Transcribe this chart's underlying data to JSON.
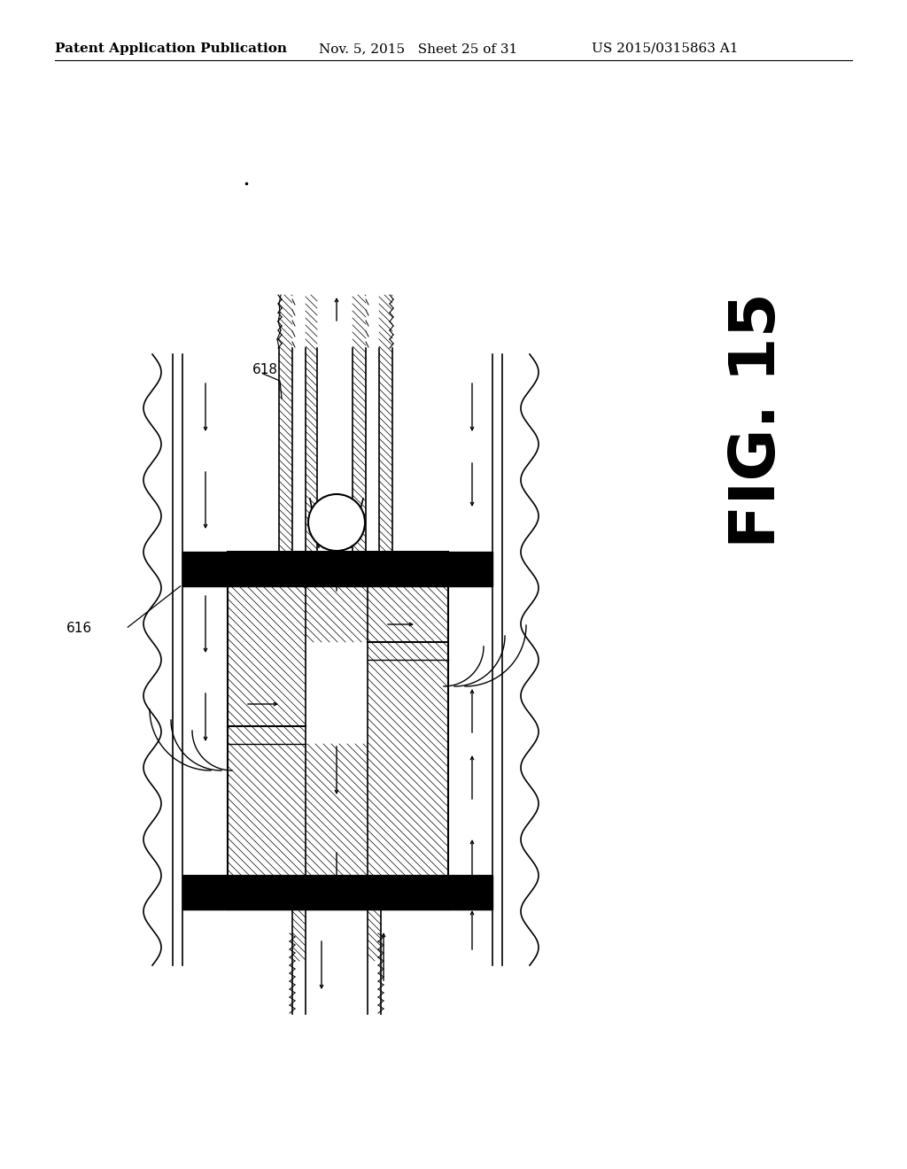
{
  "header_left": "Patent Application Publication",
  "header_mid": "Nov. 5, 2015   Sheet 25 of 31",
  "header_right": "US 2015/0315863 A1",
  "fig_label": "FIG. 15",
  "label_618": "618",
  "label_616": "616",
  "bg_color": "#ffffff",
  "line_color": "#000000",
  "fig_label_fontsize": 52,
  "header_fontsize": 11
}
